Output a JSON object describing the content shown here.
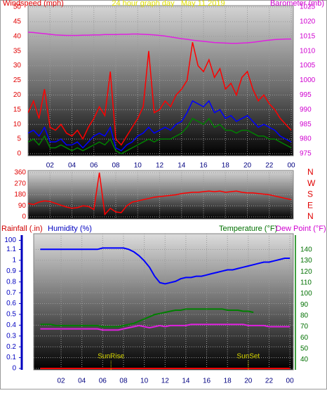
{
  "chart_data": [
    {
      "type": "line",
      "title": "24 hour graph day   May 11 2019",
      "y_label": "Windspeed (mph)",
      "y2_label": "Barometer (mb)",
      "x": [
        0,
        0.5,
        1,
        1.5,
        2,
        2.5,
        3,
        3.5,
        4,
        4.5,
        5,
        5.5,
        6,
        6.5,
        7,
        7.5,
        8,
        8.5,
        9,
        9.5,
        10,
        10.5,
        11,
        11.5,
        12,
        12.5,
        13,
        13.5,
        14,
        14.5,
        15,
        15.5,
        16,
        16.5,
        17,
        17.5,
        18,
        18.5,
        19,
        19.5,
        20,
        20.5,
        21,
        21.5,
        22,
        22.5,
        23,
        23.5,
        24
      ],
      "xlim": [
        0,
        24
      ],
      "xticks": [
        {
          "value": 2,
          "label": "02"
        },
        {
          "value": 4,
          "label": "04"
        },
        {
          "value": 6,
          "label": "06"
        },
        {
          "value": 8,
          "label": "08"
        },
        10,
        12,
        14,
        16,
        18,
        20,
        22,
        {
          "value": 24,
          "label": "00"
        }
      ],
      "ylim": [
        0,
        50
      ],
      "yticks": [
        0,
        5,
        10,
        15,
        20,
        25,
        30,
        35,
        40,
        45,
        50
      ],
      "y2lim": [
        975,
        1025
      ],
      "y2ticks": [
        975,
        980,
        985,
        990,
        995,
        1000,
        1005,
        1010,
        1015,
        1020,
        1025
      ],
      "grid": true,
      "series": [
        {
          "color": "#ff0000",
          "values": [
            14,
            18,
            12,
            22,
            9,
            8,
            10,
            7,
            6,
            8,
            5,
            9,
            12,
            16,
            13,
            28,
            5,
            3,
            6,
            9,
            12,
            16,
            35,
            14,
            15,
            18,
            16,
            20,
            22,
            25,
            38,
            30,
            28,
            32,
            26,
            29,
            22,
            24,
            20,
            26,
            28,
            22,
            18,
            20,
            17,
            15,
            12,
            10,
            8
          ]
        },
        {
          "color": "#0000ff",
          "values": [
            7,
            8,
            6,
            9,
            4,
            4,
            5,
            3,
            3,
            4,
            2,
            4,
            6,
            7,
            6,
            9,
            2,
            1,
            3,
            4,
            6,
            7,
            9,
            7,
            8,
            9,
            8,
            10,
            11,
            14,
            18,
            17,
            16,
            18,
            14,
            15,
            12,
            13,
            11,
            12,
            13,
            11,
            9,
            10,
            9,
            8,
            6,
            5,
            4
          ]
        },
        {
          "color": "#008000",
          "values": [
            4,
            5,
            3,
            6,
            2,
            2,
            3,
            2,
            1,
            2,
            1,
            2,
            3,
            4,
            3,
            5,
            1,
            0,
            1,
            2,
            3,
            4,
            5,
            4,
            5,
            5,
            5,
            6,
            7,
            9,
            12,
            11,
            10,
            12,
            9,
            10,
            8,
            8,
            7,
            8,
            8,
            7,
            6,
            6,
            5,
            5,
            4,
            3,
            2
          ]
        },
        {
          "color": "#e020e0",
          "axis": "y2",
          "values": [
            1016.4,
            1016.3,
            1016.1,
            1015.9,
            1015.7,
            1015.5,
            1015.4,
            1015.3,
            1015.3,
            1015.3,
            1015.4,
            1015.4,
            1015.5,
            1015.5,
            1015.6,
            1015.6,
            1015.6,
            1015.7,
            1015.7,
            1015.8,
            1015.8,
            1015.7,
            1015.6,
            1015.5,
            1015.3,
            1015.1,
            1014.8,
            1014.5,
            1014.2,
            1014.0,
            1013.7,
            1013.5,
            1013.3,
            1013.1,
            1012.9,
            1012.8,
            1012.7,
            1012.6,
            1012.6,
            1012.7,
            1012.8,
            1013.0,
            1013.2,
            1013.5,
            1013.7,
            1013.9,
            1014.0,
            1014.1,
            1014.1
          ]
        }
      ]
    },
    {
      "type": "line",
      "x": [
        0,
        0.5,
        1,
        1.5,
        2,
        2.5,
        3,
        3.5,
        4,
        4.5,
        5,
        5.5,
        6,
        6.5,
        7,
        7.5,
        8,
        8.5,
        9,
        9.5,
        10,
        10.5,
        11,
        11.5,
        12,
        12.5,
        13,
        13.5,
        14,
        14.5,
        15,
        15.5,
        16,
        16.5,
        17,
        17.5,
        18,
        18.5,
        19,
        19.5,
        20,
        20.5,
        21,
        21.5,
        22,
        22.5,
        23,
        23.5,
        24
      ],
      "xlim": [
        0,
        24
      ],
      "ylim": [
        0,
        360
      ],
      "yticks": [
        0,
        90,
        180,
        270,
        360
      ],
      "y2ticks": [
        {
          "value": 0,
          "label": "N"
        },
        {
          "value": 90,
          "label": "E"
        },
        {
          "value": 180,
          "label": "S"
        },
        {
          "value": 270,
          "label": "W"
        },
        {
          "value": 360,
          "label": "N"
        }
      ],
      "grid": true,
      "series": [
        {
          "color": "#ff0000",
          "values": [
            110,
            100,
            120,
            130,
            125,
            110,
            95,
            80,
            70,
            75,
            90,
            85,
            60,
            360,
            20,
            70,
            40,
            35,
            90,
            120,
            130,
            140,
            150,
            160,
            165,
            170,
            175,
            180,
            190,
            195,
            200,
            200,
            205,
            210,
            205,
            210,
            200,
            205,
            210,
            200,
            195,
            195,
            190,
            185,
            180,
            170,
            160,
            150,
            140
          ]
        }
      ]
    },
    {
      "type": "line",
      "y_label": "Rainfall (.in)",
      "humidity_label": "Humidity (%)",
      "y2_label": "Temperature (°F)",
      "dewpoint_label": "Dew Point (°F)",
      "x": [
        0,
        0.5,
        1,
        1.5,
        2,
        2.5,
        3,
        3.5,
        4,
        4.5,
        5,
        5.5,
        6,
        6.5,
        7,
        7.5,
        8,
        8.5,
        9,
        9.5,
        10,
        10.5,
        11,
        11.5,
        12,
        12.5,
        13,
        13.5,
        14,
        14.5,
        15,
        15.5,
        16,
        16.5,
        17,
        17.5,
        18,
        18.5,
        19,
        19.5,
        20,
        20.5,
        21,
        21.5,
        22,
        22.5,
        23,
        23.5,
        24
      ],
      "xlim": [
        0,
        24
      ],
      "xticks": [
        {
          "value": 2,
          "label": "02"
        },
        {
          "value": 4,
          "label": "04"
        },
        {
          "value": 6,
          "label": "06"
        },
        {
          "value": 8,
          "label": "08"
        },
        10,
        12,
        14,
        16,
        18,
        20,
        22,
        {
          "value": 24,
          "label": "00"
        }
      ],
      "ylim": [
        0,
        1.22
      ],
      "yticks": [
        0,
        0.1,
        0.2,
        0.3,
        0.4,
        0.5,
        0.6,
        0.7,
        0.8,
        0.9,
        1,
        1.1
      ],
      "humidity_lim": [
        0,
        103
      ],
      "humidity_ticks": [
        100
      ],
      "y2lim": [
        32,
        152
      ],
      "y2ticks": [
        40,
        50,
        60,
        70,
        80,
        90,
        100,
        110,
        120,
        130,
        140
      ],
      "grid": true,
      "annotations": [
        {
          "text": "SunRise",
          "x": 6.8
        },
        {
          "text": "SunSet",
          "x": 20
        }
      ],
      "series": [
        {
          "color": "#ff0000",
          "values": [
            0,
            0,
            0,
            0,
            0,
            0,
            0,
            0,
            0,
            0,
            0,
            0,
            0,
            0,
            0,
            0,
            0,
            0,
            0,
            0,
            0,
            0,
            0,
            0,
            0,
            0,
            0,
            0,
            0,
            0,
            0,
            0,
            0,
            0,
            0,
            0,
            0,
            0,
            0,
            0,
            0,
            0,
            0,
            0,
            0,
            0,
            0,
            0,
            0
          ]
        },
        {
          "color": "#0000ff",
          "axis": "humidity",
          "values": [
            93,
            93,
            93,
            93,
            93,
            93,
            93,
            93,
            93,
            93,
            93,
            93,
            94,
            94,
            94,
            94,
            94,
            93,
            91,
            88,
            84,
            79,
            72,
            67,
            66,
            67,
            68,
            70,
            71,
            71,
            72,
            72,
            73,
            74,
            75,
            76,
            77,
            77,
            78,
            79,
            80,
            81,
            82,
            83,
            83,
            84,
            85,
            86,
            86
          ]
        },
        {
          "color": "#008000",
          "axis": "y2",
          "values": [
            72,
            72,
            72,
            71,
            71,
            71,
            71,
            71,
            71,
            71,
            71,
            71,
            70,
            70,
            70,
            70,
            71,
            72,
            73,
            75,
            77,
            79,
            81,
            82,
            83,
            84,
            85,
            85,
            86,
            86,
            86,
            86,
            86,
            86,
            86,
            86,
            85,
            85,
            85,
            84,
            84,
            83,
            null,
            null,
            null,
            null,
            null,
            null,
            null
          ]
        },
        {
          "color": "#e020e0",
          "axis": "y2",
          "values": [
            68,
            68,
            68,
            68,
            68,
            68,
            68,
            68,
            68,
            68,
            68,
            68,
            67,
            67,
            67,
            67,
            68,
            69,
            70,
            71,
            70,
            69,
            70,
            71,
            70,
            71,
            71,
            71,
            71,
            72,
            72,
            72,
            72,
            72,
            72,
            72,
            72,
            72,
            72,
            72,
            71,
            71,
            71,
            71,
            70,
            70,
            70,
            70,
            70
          ]
        }
      ]
    }
  ]
}
